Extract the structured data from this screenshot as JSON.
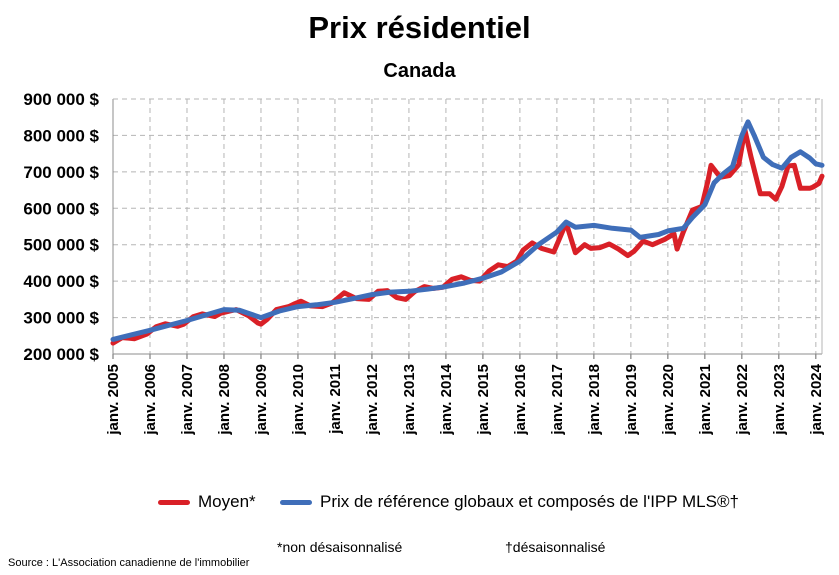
{
  "chart_data": {
    "type": "line",
    "title": "Prix résidentiel",
    "subtitle": "Canada",
    "xlabel": "",
    "ylabel": "",
    "ylim": [
      200000,
      900000
    ],
    "xlim": [
      "2005-01",
      "2024-03"
    ],
    "grid": true,
    "legend_position": "bottom",
    "y_ticks": [
      {
        "value": 200000,
        "label": "200 000 $"
      },
      {
        "value": 300000,
        "label": "300 000 $"
      },
      {
        "value": 400000,
        "label": "400 000 $"
      },
      {
        "value": 500000,
        "label": "500 000 $"
      },
      {
        "value": 600000,
        "label": "600 000 $"
      },
      {
        "value": 700000,
        "label": "700 000 $"
      },
      {
        "value": 800000,
        "label": "800 000 $"
      },
      {
        "value": 900000,
        "label": "900 000 $"
      }
    ],
    "x_ticks": [
      {
        "value": "2005-01",
        "label": "janv. 2005"
      },
      {
        "value": "2006-01",
        "label": "janv. 2006"
      },
      {
        "value": "2007-01",
        "label": "janv. 2007"
      },
      {
        "value": "2008-01",
        "label": "janv. 2008"
      },
      {
        "value": "2009-01",
        "label": "janv. 2009"
      },
      {
        "value": "2010-01",
        "label": "janv. 2010"
      },
      {
        "value": "2011-01",
        "label": "janv. 2011"
      },
      {
        "value": "2012-01",
        "label": "janv. 2012"
      },
      {
        "value": "2013-01",
        "label": "janv. 2013"
      },
      {
        "value": "2014-01",
        "label": "janv. 2014"
      },
      {
        "value": "2015-01",
        "label": "janv. 2015"
      },
      {
        "value": "2016-01",
        "label": "janv. 2016"
      },
      {
        "value": "2017-01",
        "label": "janv. 2017"
      },
      {
        "value": "2018-01",
        "label": "janv. 2018"
      },
      {
        "value": "2019-01",
        "label": "janv. 2019"
      },
      {
        "value": "2020-01",
        "label": "janv. 2020"
      },
      {
        "value": "2021-01",
        "label": "janv. 2021"
      },
      {
        "value": "2022-01",
        "label": "janv. 2022"
      },
      {
        "value": "2023-01",
        "label": "janv. 2023"
      },
      {
        "value": "2024-01",
        "label": "janv. 2024"
      }
    ],
    "series": [
      {
        "name": "Moyen*",
        "color": "#D92027",
        "points": [
          [
            "2005-01",
            230000
          ],
          [
            "2005-04",
            245000
          ],
          [
            "2005-08",
            242000
          ],
          [
            "2005-12",
            255000
          ],
          [
            "2006-03",
            275000
          ],
          [
            "2006-06",
            283000
          ],
          [
            "2006-10",
            276000
          ],
          [
            "2006-12",
            282000
          ],
          [
            "2007-03",
            302000
          ],
          [
            "2007-06",
            310000
          ],
          [
            "2007-10",
            303000
          ],
          [
            "2007-12",
            312000
          ],
          [
            "2008-03",
            318000
          ],
          [
            "2008-05",
            322000
          ],
          [
            "2008-09",
            305000
          ],
          [
            "2008-12",
            285000
          ],
          [
            "2009-01",
            282000
          ],
          [
            "2009-03",
            295000
          ],
          [
            "2009-06",
            322000
          ],
          [
            "2009-10",
            330000
          ],
          [
            "2009-12",
            338000
          ],
          [
            "2010-02",
            345000
          ],
          [
            "2010-05",
            332000
          ],
          [
            "2010-09",
            330000
          ],
          [
            "2010-12",
            340000
          ],
          [
            "2011-04",
            368000
          ],
          [
            "2011-08",
            352000
          ],
          [
            "2011-12",
            350000
          ],
          [
            "2012-03",
            372000
          ],
          [
            "2012-06",
            374000
          ],
          [
            "2012-09",
            355000
          ],
          [
            "2012-12",
            350000
          ],
          [
            "2013-03",
            372000
          ],
          [
            "2013-06",
            385000
          ],
          [
            "2013-09",
            380000
          ],
          [
            "2013-12",
            383000
          ],
          [
            "2014-03",
            405000
          ],
          [
            "2014-06",
            412000
          ],
          [
            "2014-09",
            402000
          ],
          [
            "2014-12",
            400000
          ],
          [
            "2015-03",
            428000
          ],
          [
            "2015-06",
            445000
          ],
          [
            "2015-09",
            440000
          ],
          [
            "2015-12",
            455000
          ],
          [
            "2016-02",
            485000
          ],
          [
            "2016-05",
            505000
          ],
          [
            "2016-08",
            490000
          ],
          [
            "2016-12",
            480000
          ],
          [
            "2017-02",
            520000
          ],
          [
            "2017-04",
            560000
          ],
          [
            "2017-07",
            478000
          ],
          [
            "2017-10",
            500000
          ],
          [
            "2017-12",
            490000
          ],
          [
            "2018-03",
            492000
          ],
          [
            "2018-06",
            502000
          ],
          [
            "2018-09",
            488000
          ],
          [
            "2018-12",
            470000
          ],
          [
            "2019-02",
            482000
          ],
          [
            "2019-05",
            510000
          ],
          [
            "2019-08",
            500000
          ],
          [
            "2019-12",
            515000
          ],
          [
            "2020-03",
            530000
          ],
          [
            "2020-04",
            488000
          ],
          [
            "2020-06",
            535000
          ],
          [
            "2020-09",
            595000
          ],
          [
            "2020-12",
            605000
          ],
          [
            "2021-02",
            675000
          ],
          [
            "2021-03",
            718000
          ],
          [
            "2021-06",
            685000
          ],
          [
            "2021-09",
            690000
          ],
          [
            "2021-12",
            720000
          ],
          [
            "2022-02",
            815000
          ],
          [
            "2022-04",
            740000
          ],
          [
            "2022-07",
            640000
          ],
          [
            "2022-10",
            640000
          ],
          [
            "2022-12",
            625000
          ],
          [
            "2023-02",
            660000
          ],
          [
            "2023-04",
            716000
          ],
          [
            "2023-06",
            718000
          ],
          [
            "2023-08",
            655000
          ],
          [
            "2023-11",
            655000
          ],
          [
            "2023-12",
            658000
          ],
          [
            "2024-02",
            668000
          ],
          [
            "2024-03",
            688000
          ]
        ]
      },
      {
        "name": "Prix de référence globaux et composés de l'IPP MLS®†",
        "color": "#3F6EB9",
        "points": [
          [
            "2005-01",
            240000
          ],
          [
            "2006-01",
            265000
          ],
          [
            "2007-01",
            292000
          ],
          [
            "2008-01",
            322000
          ],
          [
            "2008-06",
            320000
          ],
          [
            "2009-01",
            300000
          ],
          [
            "2009-07",
            318000
          ],
          [
            "2010-01",
            330000
          ],
          [
            "2010-07",
            335000
          ],
          [
            "2011-01",
            342000
          ],
          [
            "2011-07",
            352000
          ],
          [
            "2012-01",
            363000
          ],
          [
            "2012-07",
            370000
          ],
          [
            "2013-01",
            372000
          ],
          [
            "2013-07",
            378000
          ],
          [
            "2014-01",
            385000
          ],
          [
            "2014-07",
            395000
          ],
          [
            "2015-01",
            408000
          ],
          [
            "2015-07",
            425000
          ],
          [
            "2016-01",
            455000
          ],
          [
            "2016-07",
            500000
          ],
          [
            "2017-01",
            535000
          ],
          [
            "2017-04",
            562000
          ],
          [
            "2017-07",
            548000
          ],
          [
            "2018-01",
            553000
          ],
          [
            "2018-07",
            545000
          ],
          [
            "2019-01",
            540000
          ],
          [
            "2019-04",
            520000
          ],
          [
            "2019-10",
            528000
          ],
          [
            "2020-01",
            538000
          ],
          [
            "2020-06",
            545000
          ],
          [
            "2020-09",
            575000
          ],
          [
            "2021-01",
            610000
          ],
          [
            "2021-04",
            670000
          ],
          [
            "2021-07",
            695000
          ],
          [
            "2021-10",
            715000
          ],
          [
            "2022-01",
            800000
          ],
          [
            "2022-03",
            837000
          ],
          [
            "2022-05",
            800000
          ],
          [
            "2022-08",
            740000
          ],
          [
            "2022-11",
            720000
          ],
          [
            "2023-02",
            710000
          ],
          [
            "2023-05",
            740000
          ],
          [
            "2023-08",
            755000
          ],
          [
            "2023-11",
            738000
          ],
          [
            "2024-01",
            722000
          ],
          [
            "2024-03",
            718000
          ]
        ]
      }
    ],
    "footnotes": [
      "*non désaisonnalisé",
      "†désaisonnalisé"
    ],
    "source": "Source : L'Association canadienne de l'immobilier"
  }
}
